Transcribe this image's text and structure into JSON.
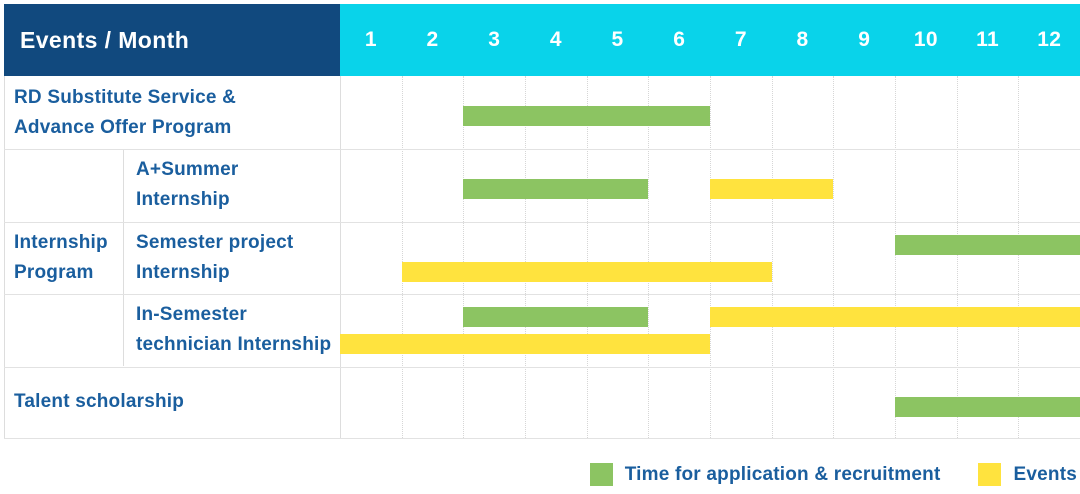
{
  "colors": {
    "header_bg": "#11497E",
    "months_bg": "#09D3EA",
    "application_green": "#8CC462",
    "event_yellow": "#FFE33E",
    "label_text": "#1A5E9E"
  },
  "chart_data": {
    "type": "gantt",
    "title": "Events / Month",
    "months": [
      "1",
      "2",
      "3",
      "4",
      "5",
      "6",
      "7",
      "8",
      "9",
      "10",
      "11",
      "12"
    ],
    "x_range": [
      1,
      12
    ],
    "legend_position": "bottom-right",
    "legend": [
      {
        "key": "application",
        "label": "Time for application & recruitment",
        "color": "#8CC462"
      },
      {
        "key": "event",
        "label": "Events",
        "color": "#FFE33E"
      }
    ],
    "group_label": {
      "text": "Internship Program",
      "lines": [
        "Internship",
        "Program"
      ],
      "spans_rows": [
        1,
        3
      ]
    },
    "rows": [
      {
        "label": "RD Substitute Service & Advance Offer Program",
        "label_lines": [
          "RD Substitute Service &",
          "Advance Offer Program"
        ],
        "group": "",
        "bars": [
          {
            "type": "application",
            "start_month": 3,
            "end_month": 6,
            "line": "single"
          }
        ]
      },
      {
        "label": "A+Summer Internship",
        "label_lines": [
          "A+Summer",
          "Internship"
        ],
        "group": "Internship Program",
        "bars": [
          {
            "type": "application",
            "start_month": 3,
            "end_month": 5,
            "line": "single"
          },
          {
            "type": "event",
            "start_month": 7,
            "end_month": 8,
            "line": "single"
          }
        ]
      },
      {
        "label": "Semester project Internship",
        "label_lines": [
          "Semester project",
          "Internship"
        ],
        "group": "Internship Program",
        "bars": [
          {
            "type": "application",
            "start_month": 10,
            "end_month": 12,
            "line": "top"
          },
          {
            "type": "event",
            "start_month": 2,
            "end_month": 7,
            "line": "bottom"
          }
        ]
      },
      {
        "label": "In-Semester technician Internship",
        "label_lines": [
          "In-Semester",
          "technician Internship"
        ],
        "group": "Internship Program",
        "bars": [
          {
            "type": "application",
            "start_month": 3,
            "end_month": 5,
            "line": "top"
          },
          {
            "type": "event",
            "start_month": 7,
            "end_month": 12,
            "line": "top"
          },
          {
            "type": "event",
            "start_month": 1,
            "end_month": 6,
            "line": "bottom"
          }
        ]
      },
      {
        "label": "Talent scholarship",
        "label_lines": [
          "Talent scholarship"
        ],
        "group": "",
        "bars": [
          {
            "type": "application",
            "start_month": 10,
            "end_month": 12,
            "line": "single"
          }
        ]
      }
    ]
  }
}
